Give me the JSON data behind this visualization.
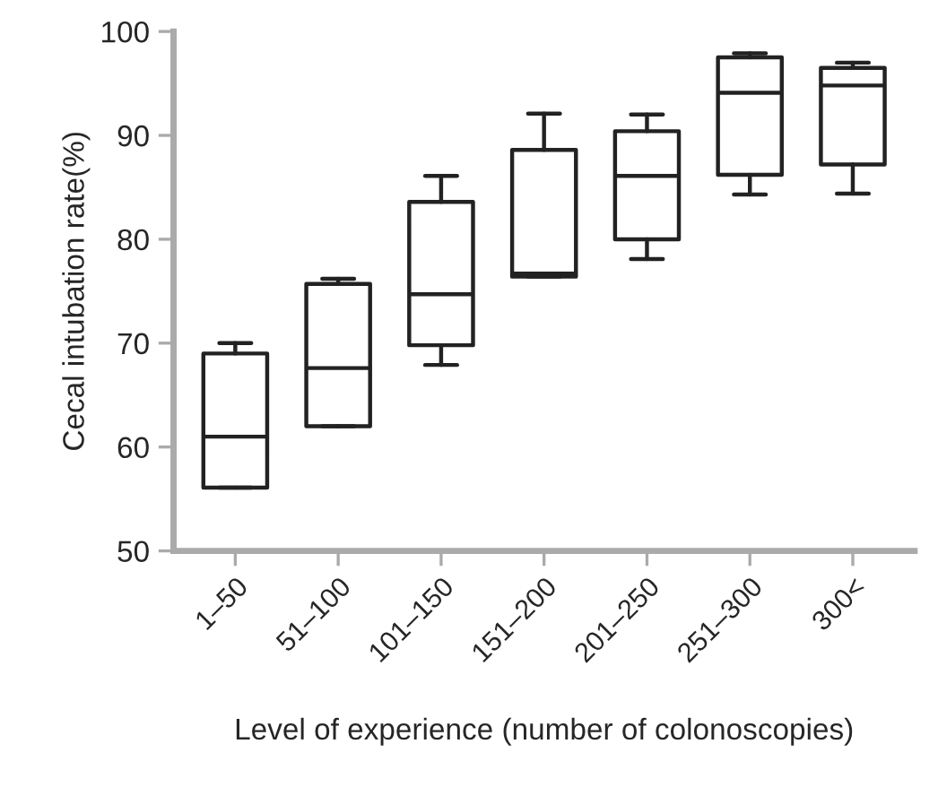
{
  "chart_data": {
    "type": "box",
    "xlabel": "Level of experience (number of colonoscopies)",
    "ylabel": "Cecal intubation rate(%)",
    "categories": [
      "1–50",
      "51–100",
      "101–150",
      "151–200",
      "201–250",
      "251–300",
      "300<"
    ],
    "boxes": [
      {
        "low": 56.1,
        "q1": 56.1,
        "median": 61,
        "q3": 69,
        "high": 70
      },
      {
        "low": 62,
        "q1": 62,
        "median": 67.6,
        "q3": 75.7,
        "high": 76.2
      },
      {
        "low": 67.9,
        "q1": 69.8,
        "median": 74.7,
        "q3": 83.6,
        "high": 86.1
      },
      {
        "low": 76.4,
        "q1": 76.4,
        "median": 76.7,
        "q3": 88.6,
        "high": 92.1
      },
      {
        "low": 78.1,
        "q1": 80,
        "median": 86.1,
        "q3": 90.4,
        "high": 92
      },
      {
        "low": 84.3,
        "q1": 86.2,
        "median": 94.1,
        "q3": 97.5,
        "high": 97.9
      },
      {
        "low": 84.4,
        "q1": 87.2,
        "median": 94.8,
        "q3": 96.5,
        "high": 97
      }
    ],
    "ylim": [
      50,
      100
    ],
    "yticks": [
      50,
      60,
      70,
      80,
      90,
      100
    ],
    "grid": false
  }
}
